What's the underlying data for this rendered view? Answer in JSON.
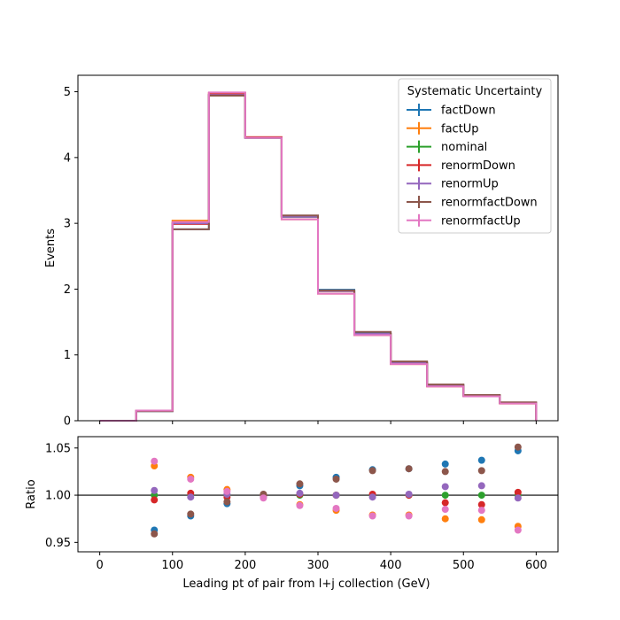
{
  "chart_data": {
    "type": "histogram-step",
    "bin_edges": [
      0,
      50,
      100,
      150,
      200,
      250,
      300,
      350,
      400,
      450,
      500,
      550,
      600
    ],
    "main_panel": {
      "ylabel": "Events",
      "ylim": [
        0,
        5.25
      ],
      "yticks": [
        0,
        1,
        2,
        3,
        4,
        5
      ],
      "xticks": [
        0,
        100,
        200,
        300,
        400,
        500,
        600
      ],
      "xlim": [
        -30,
        630
      ]
    },
    "ratio_panel": {
      "ylabel": "Ratio",
      "xlabel": "Leading pt of pair from l+j collection (GeV)",
      "ylim": [
        0.94,
        1.062
      ],
      "yticks": [
        0.95,
        1.0,
        1.05
      ],
      "ytick_labels": [
        "0.95",
        "1.00",
        "1.05"
      ],
      "reference_line": 1.0
    },
    "legend": {
      "title": "Systematic Uncertainty",
      "position": "top-right"
    },
    "series": [
      {
        "name": "factDown",
        "color": "#1f77b4",
        "values": [
          0.0,
          0.145,
          2.91,
          4.95,
          4.3,
          3.1,
          1.99,
          1.33,
          0.87,
          0.54,
          0.38,
          0.27
        ],
        "ratio": [
          0.963,
          0.978,
          0.991,
          1.0,
          1.01,
          1.019,
          1.027,
          1.028,
          1.033,
          1.037,
          1.047
        ]
      },
      {
        "name": "factUp",
        "color": "#ff7f0e",
        "values": [
          0.0,
          0.155,
          3.04,
          4.98,
          4.31,
          3.06,
          1.93,
          1.3,
          0.86,
          0.52,
          0.37,
          0.26
        ],
        "ratio": [
          1.031,
          1.019,
          1.006,
          1.0,
          0.99,
          0.984,
          0.979,
          0.979,
          0.975,
          0.974,
          0.967
        ]
      },
      {
        "name": "nominal",
        "color": "#2ca02c",
        "values": [
          0.0,
          0.15,
          3.0,
          4.95,
          4.3,
          3.1,
          1.97,
          1.32,
          0.88,
          0.53,
          0.38,
          0.27
        ],
        "ratio": [
          1.0,
          1.0,
          1.0,
          1.0,
          1.0,
          1.0,
          1.0,
          1.0,
          1.0,
          1.0,
          1.0
        ]
      },
      {
        "name": "renormDown",
        "color": "#d62728",
        "values": [
          0.0,
          0.148,
          2.99,
          4.96,
          4.31,
          3.11,
          1.97,
          1.32,
          0.88,
          0.53,
          0.38,
          0.27
        ],
        "ratio": [
          0.995,
          1.002,
          0.998,
          1.0,
          1.001,
          1.0,
          1.001,
          1.0,
          0.992,
          0.99,
          1.003
        ]
      },
      {
        "name": "renormUp",
        "color": "#9467bd",
        "values": [
          0.0,
          0.152,
          3.0,
          4.95,
          4.3,
          3.1,
          1.97,
          1.32,
          0.88,
          0.54,
          0.38,
          0.27
        ],
        "ratio": [
          1.005,
          0.998,
          1.001,
          0.998,
          1.002,
          1.0,
          0.998,
          1.001,
          1.009,
          1.01,
          0.997
        ]
      },
      {
        "name": "renormfactDown",
        "color": "#8c564b",
        "values": [
          0.0,
          0.145,
          2.91,
          4.94,
          4.3,
          3.12,
          1.98,
          1.35,
          0.9,
          0.55,
          0.39,
          0.28
        ],
        "ratio": [
          0.959,
          0.98,
          0.993,
          1.001,
          1.012,
          1.017,
          1.026,
          1.028,
          1.025,
          1.026,
          1.051
        ]
      },
      {
        "name": "renormfactUp",
        "color": "#e377c2",
        "values": [
          0.0,
          0.155,
          3.02,
          4.99,
          4.3,
          3.06,
          1.93,
          1.3,
          0.86,
          0.52,
          0.37,
          0.26
        ],
        "ratio": [
          1.036,
          1.017,
          1.004,
          0.997,
          0.989,
          0.986,
          0.978,
          0.978,
          0.985,
          0.984,
          0.963
        ]
      }
    ],
    "ratio_x_centers": [
      75,
      125,
      175,
      225,
      275,
      325,
      375,
      425,
      475,
      525,
      575
    ]
  }
}
